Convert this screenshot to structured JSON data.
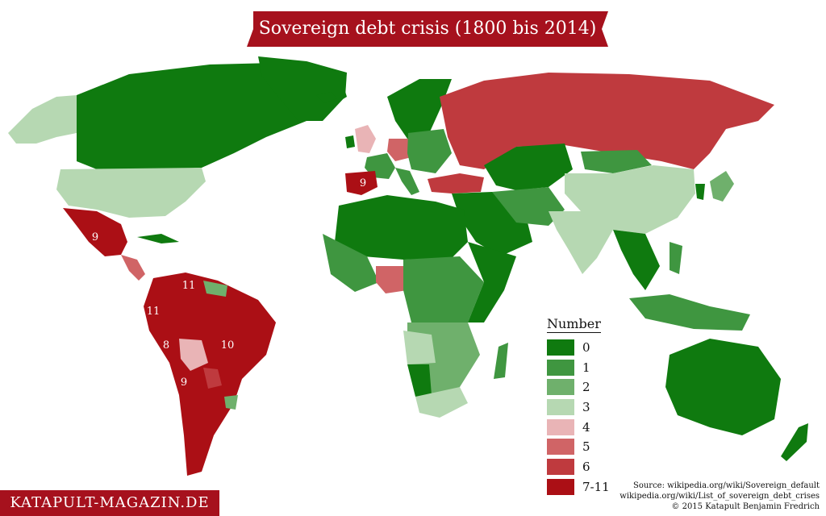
{
  "title": "Sovereign debt crisis (1800 bis 2014)",
  "legend": {
    "title": "Number",
    "items": [
      {
        "label": "0",
        "color": "#0f7a0f"
      },
      {
        "label": "1",
        "color": "#3f9640"
      },
      {
        "label": "2",
        "color": "#6fb06c"
      },
      {
        "label": "3",
        "color": "#b6d8b2"
      },
      {
        "label": "4",
        "color": "#e9b4b6"
      },
      {
        "label": "5",
        "color": "#d06466"
      },
      {
        "label": "6",
        "color": "#bf3a3e"
      },
      {
        "label": "7-11",
        "color": "#ab0f15"
      }
    ]
  },
  "map_labels": {
    "mexico": "9",
    "spain": "9",
    "venezuela": "11",
    "ecuador": "11",
    "peru": "8",
    "brazil": "10",
    "chile": "9"
  },
  "brand": "KATAPULT-MAGAZIN.DE",
  "sources": [
    "Source: wikipedia.org/wiki/Sovereign_default",
    "wikipedia.org/wiki/List_of_sovereign_debt_crises",
    "© 2015 Katapult Benjamin Fredrich"
  ]
}
